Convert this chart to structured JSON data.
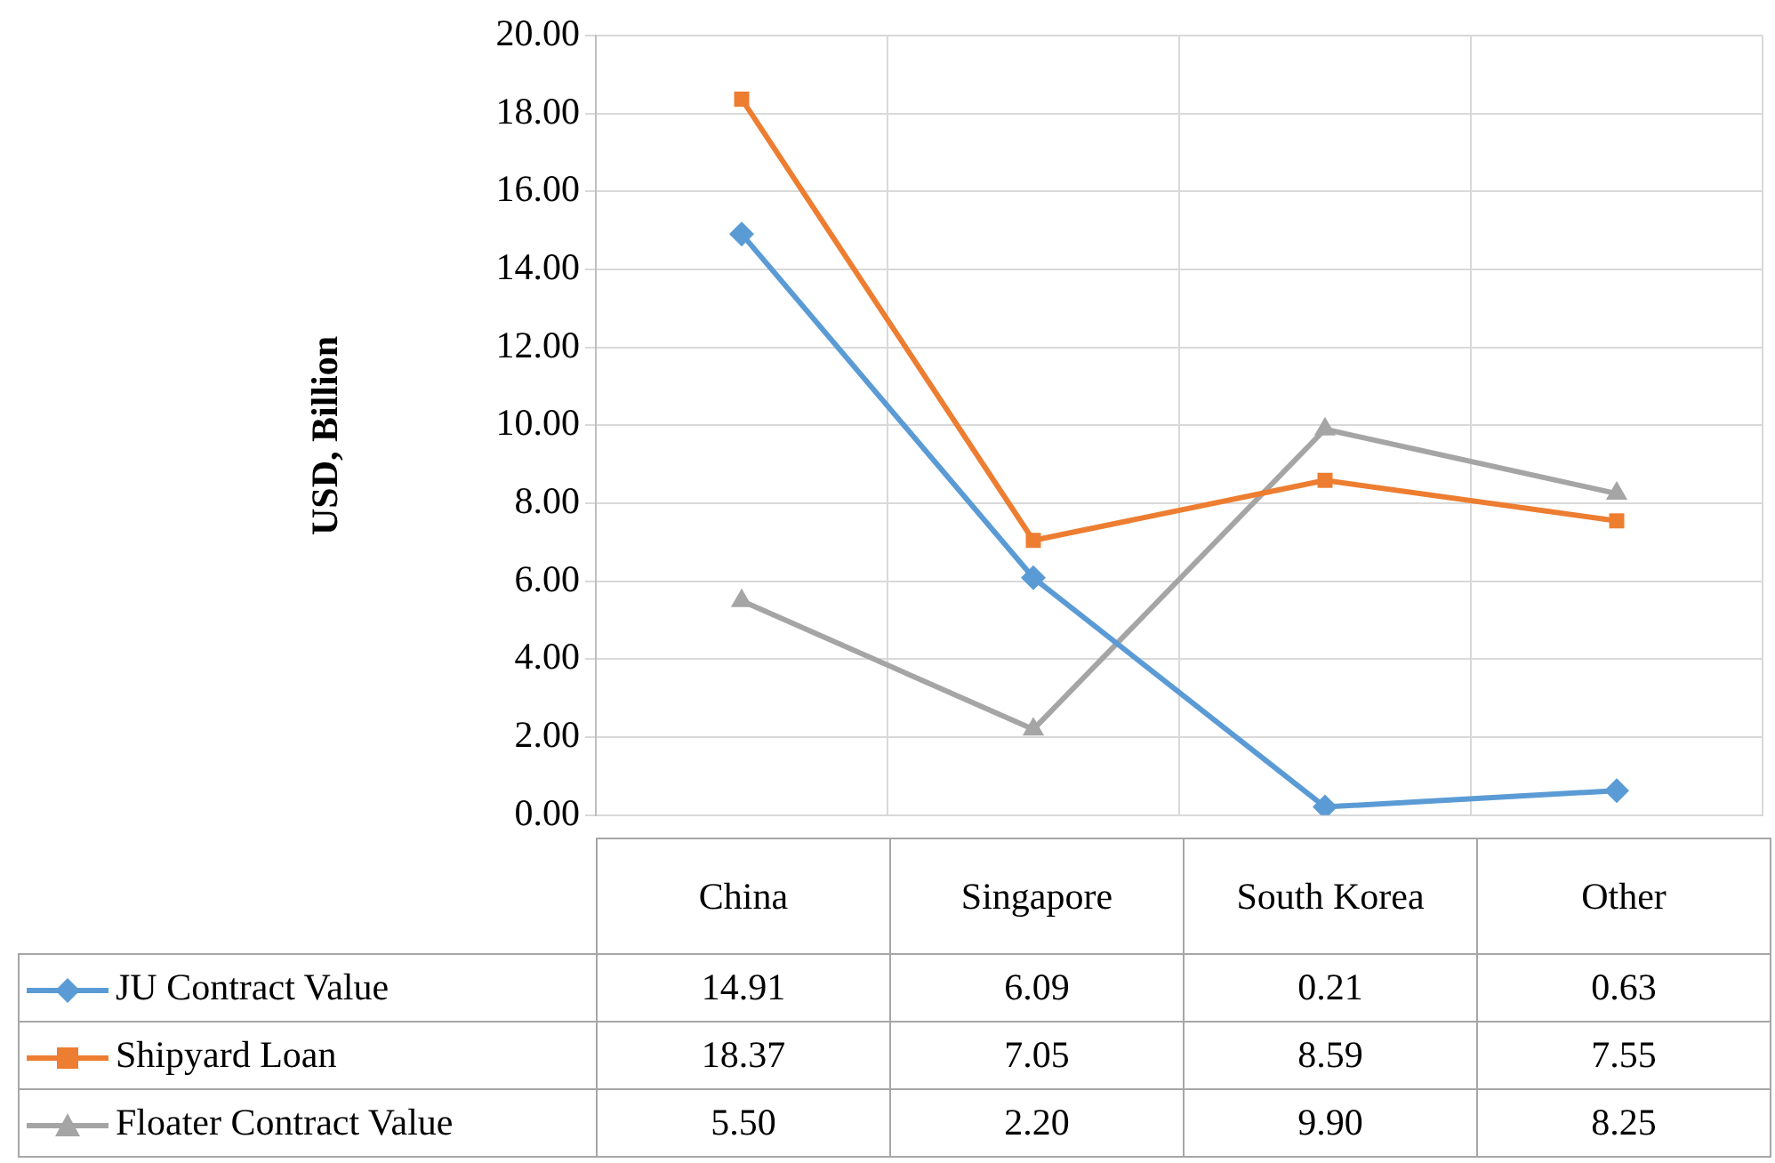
{
  "chart_data": {
    "type": "line",
    "ylabel": "USD, Billion",
    "categories": [
      "China",
      "Singapore",
      "South Korea",
      "Other"
    ],
    "series": [
      {
        "name": "JU Contract Value",
        "color": "#5b9bd5",
        "marker": "diamond",
        "values": [
          14.91,
          6.09,
          0.21,
          0.63
        ],
        "value_labels": [
          "14.91",
          "6.09",
          "0.21",
          "0.63"
        ]
      },
      {
        "name": "Shipyard Loan",
        "color": "#ed7d31",
        "marker": "square",
        "values": [
          18.37,
          7.05,
          8.59,
          7.55
        ],
        "value_labels": [
          "18.37",
          "7.05",
          "8.59",
          "7.55"
        ]
      },
      {
        "name": "Floater Contract Value",
        "color": "#a5a5a5",
        "marker": "triangle",
        "values": [
          5.5,
          2.2,
          9.9,
          8.25
        ],
        "value_labels": [
          "5.50",
          "2.20",
          "9.90",
          "8.25"
        ]
      }
    ],
    "ylim": [
      0,
      20
    ],
    "yticks": [
      {
        "value": 0,
        "label": "0.00"
      },
      {
        "value": 2,
        "label": "2.00"
      },
      {
        "value": 4,
        "label": "4.00"
      },
      {
        "value": 6,
        "label": "6.00"
      },
      {
        "value": 8,
        "label": "8.00"
      },
      {
        "value": 10,
        "label": "10.00"
      },
      {
        "value": 12,
        "label": "12.00"
      },
      {
        "value": 14,
        "label": "14.00"
      },
      {
        "value": 16,
        "label": "16.00"
      },
      {
        "value": 18,
        "label": "18.00"
      },
      {
        "value": 20,
        "label": "20.00"
      }
    ],
    "grid": true,
    "legend": "bottom left",
    "line_style": "solid"
  }
}
